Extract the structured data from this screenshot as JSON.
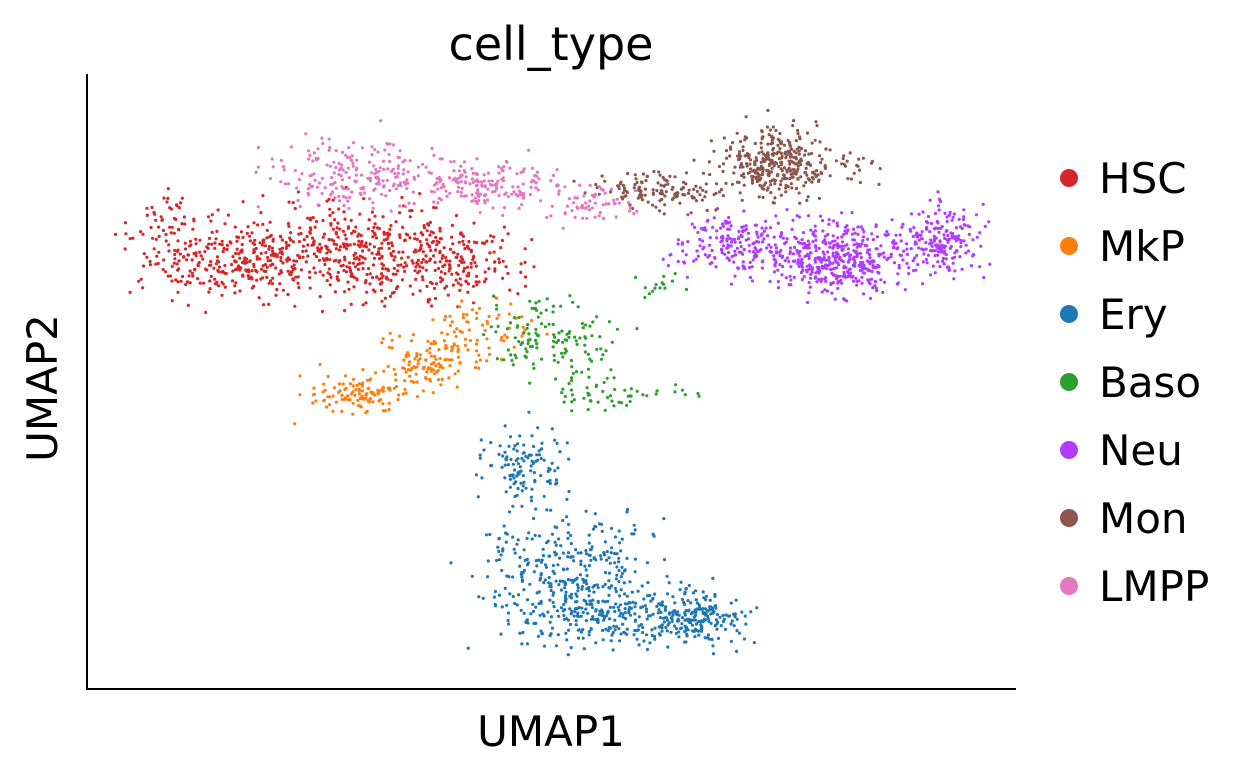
{
  "chart_data": {
    "type": "scatter",
    "title": "cell_type",
    "xlabel": "UMAP1",
    "ylabel": "UMAP2",
    "xlim": [
      0,
      100
    ],
    "ylim": [
      0,
      100
    ],
    "grid": false,
    "legend_position": "right",
    "series": [
      {
        "name": "HSC",
        "color": "#d62728",
        "clusters": [
          {
            "cx": 15,
            "cy": 70,
            "rx": 10,
            "ry": 6,
            "n": 300
          },
          {
            "cx": 29,
            "cy": 71,
            "rx": 11,
            "ry": 7,
            "n": 400
          },
          {
            "cx": 40,
            "cy": 70,
            "rx": 6,
            "ry": 5,
            "n": 160
          },
          {
            "cx": 9,
            "cy": 77,
            "rx": 2,
            "ry": 3,
            "n": 30
          }
        ]
      },
      {
        "name": "MkP",
        "color": "#ff7f0e",
        "clusters": [
          {
            "cx": 29,
            "cy": 48,
            "rx": 5,
            "ry": 3,
            "n": 120
          },
          {
            "cx": 37,
            "cy": 53,
            "rx": 5,
            "ry": 4,
            "n": 120
          },
          {
            "cx": 43,
            "cy": 59,
            "rx": 5,
            "ry": 4,
            "n": 60
          }
        ]
      },
      {
        "name": "Ery",
        "color": "#1f77b4",
        "clusters": [
          {
            "cx": 47,
            "cy": 36,
            "rx": 4,
            "ry": 6,
            "n": 120
          },
          {
            "cx": 52,
            "cy": 20,
            "rx": 8,
            "ry": 7,
            "n": 260
          },
          {
            "cx": 57,
            "cy": 12,
            "rx": 11,
            "ry": 5,
            "n": 300
          },
          {
            "cx": 66,
            "cy": 12,
            "rx": 5,
            "ry": 4,
            "n": 150
          }
        ]
      },
      {
        "name": "Baso",
        "color": "#2ca02c",
        "clusters": [
          {
            "cx": 50,
            "cy": 57,
            "rx": 6,
            "ry": 6,
            "n": 130
          },
          {
            "cx": 54,
            "cy": 48,
            "rx": 4,
            "ry": 3,
            "n": 40
          },
          {
            "cx": 62,
            "cy": 48,
            "rx": 6,
            "ry": 1.5,
            "n": 15
          },
          {
            "cx": 62,
            "cy": 66,
            "rx": 2,
            "ry": 2,
            "n": 15
          }
        ]
      },
      {
        "name": "Neu",
        "color": "#b03cff",
        "clusters": [
          {
            "cx": 70,
            "cy": 72,
            "rx": 6,
            "ry": 4,
            "n": 180
          },
          {
            "cx": 81,
            "cy": 70,
            "rx": 7,
            "ry": 5,
            "n": 450
          },
          {
            "cx": 92,
            "cy": 73,
            "rx": 4,
            "ry": 5,
            "n": 180
          }
        ]
      },
      {
        "name": "Mon",
        "color": "#8c564b",
        "clusters": [
          {
            "cx": 74,
            "cy": 86,
            "rx": 5,
            "ry": 5,
            "n": 350
          },
          {
            "cx": 62,
            "cy": 81,
            "rx": 6,
            "ry": 3,
            "n": 130
          },
          {
            "cx": 83,
            "cy": 85,
            "rx": 2,
            "ry": 2,
            "n": 20
          }
        ]
      },
      {
        "name": "LMPP",
        "color": "#e377c2",
        "clusters": [
          {
            "cx": 28,
            "cy": 84,
            "rx": 8,
            "ry": 5,
            "n": 200
          },
          {
            "cx": 42,
            "cy": 82,
            "rx": 8,
            "ry": 4,
            "n": 180
          },
          {
            "cx": 54,
            "cy": 79,
            "rx": 4,
            "ry": 3,
            "n": 60
          }
        ]
      }
    ]
  }
}
